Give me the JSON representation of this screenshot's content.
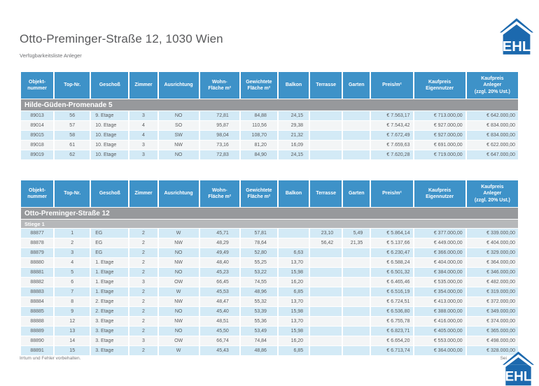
{
  "page": {
    "title": "Otto-Preminger-Straße 12, 1030 Wien",
    "subtitle": "Verfügbarkeitsliste Anleger",
    "footer_note": "Irrtum und Fehler vorbehalten.",
    "page_label": "Sei"
  },
  "logo": {
    "text": "EHL",
    "color": "#1c69ae"
  },
  "colors": {
    "header_blue": "#3e92c8",
    "section_gray": "#97999c",
    "subsection_gray": "#b6b8ba",
    "row_blue": "#d3eaf6",
    "row_white": "#f3f5f6",
    "text_gray": "#58595b",
    "logo_blue": "#1c69ae"
  },
  "columns": [
    "Objekt-\nnummer",
    "Top-Nr.",
    "Geschoß",
    "Zimmer",
    "Ausrichtung",
    "Wohn-\nFläche m²",
    "Gewichtete\nFläche m²",
    "Balkon",
    "Terrasse",
    "Garten",
    "Preis/m²",
    "Kaufpreis\nEigennutzer",
    "Kaufpreis\nAnleger\n(zzgl. 20% Ust.)"
  ],
  "tables": [
    {
      "section": "Hilde-Güden-Promenade 5",
      "subsection": null,
      "rows": [
        [
          "89013",
          "56",
          "9. Etage",
          "3",
          "NO",
          "72,81",
          "84,88",
          "24,15",
          "",
          "",
          "€ 7.563,17",
          "€ 713.000,00",
          "€ 642.000,00"
        ],
        [
          "89014",
          "57",
          "10. Etage",
          "4",
          "SO",
          "95,87",
          "110,56",
          "29,38",
          "",
          "",
          "€ 7.543,42",
          "€ 927.000,00",
          "€ 834.000,00"
        ],
        [
          "89015",
          "58",
          "10. Etage",
          "4",
          "SW",
          "98,04",
          "108,70",
          "21,32",
          "",
          "",
          "€ 7.672,49",
          "€ 927.000,00",
          "€ 834.000,00"
        ],
        [
          "89018",
          "61",
          "10. Etage",
          "3",
          "NW",
          "73,16",
          "81,20",
          "16,09",
          "",
          "",
          "€ 7.659,63",
          "€ 691.000,00",
          "€ 622.000,00"
        ],
        [
          "89019",
          "62",
          "10. Etage",
          "3",
          "NO",
          "72,83",
          "84,90",
          "24,15",
          "",
          "",
          "€ 7.620,28",
          "€ 719.000,00",
          "€ 647.000,00"
        ]
      ]
    },
    {
      "section": "Otto-Preminger-Straße 12",
      "subsection": "Stiege 1",
      "rows": [
        [
          "88877",
          "1",
          "EG",
          "2",
          "W",
          "45,71",
          "57,81",
          "",
          "23,10",
          "5,49",
          "€ 5.864,14",
          "€ 377.000,00",
          "€ 339.000,00"
        ],
        [
          "88878",
          "2",
          "EG",
          "2",
          "NW",
          "48,29",
          "78,64",
          "",
          "56,42",
          "21,35",
          "€ 5.137,66",
          "€ 449.000,00",
          "€ 404.000,00"
        ],
        [
          "88879",
          "3",
          "EG",
          "2",
          "NO",
          "49,49",
          "52,80",
          "6,63",
          "",
          "",
          "€ 6.230,47",
          "€ 366.000,00",
          "€ 329.000,00"
        ],
        [
          "88880",
          "4",
          "1. Etage",
          "2",
          "NW",
          "48,40",
          "55,25",
          "13,70",
          "",
          "",
          "€ 6.588,24",
          "€ 404.000,00",
          "€ 364.000,00"
        ],
        [
          "88881",
          "5",
          "1. Etage",
          "2",
          "NO",
          "45,23",
          "53,22",
          "15,98",
          "",
          "",
          "€ 6.501,32",
          "€ 384.000,00",
          "€ 346.000,00"
        ],
        [
          "88882",
          "6",
          "1. Etage",
          "3",
          "OW",
          "66,45",
          "74,55",
          "16,20",
          "",
          "",
          "€ 6.465,46",
          "€ 535.000,00",
          "€ 482.000,00"
        ],
        [
          "88883",
          "7",
          "1. Etage",
          "2",
          "W",
          "45,53",
          "48,96",
          "6,85",
          "",
          "",
          "€ 6.516,19",
          "€ 354.000,00",
          "€ 319.000,00"
        ],
        [
          "88884",
          "8",
          "2. Etage",
          "2",
          "NW",
          "48,47",
          "55,32",
          "13,70",
          "",
          "",
          "€ 6.724,51",
          "€ 413.000,00",
          "€ 372.000,00"
        ],
        [
          "88885",
          "9",
          "2. Etage",
          "2",
          "NO",
          "45,40",
          "53,39",
          "15,98",
          "",
          "",
          "€ 6.536,80",
          "€ 388.000,00",
          "€ 349.000,00"
        ],
        [
          "88888",
          "12",
          "3. Etage",
          "2",
          "NW",
          "48,51",
          "55,36",
          "13,70",
          "",
          "",
          "€ 6.755,78",
          "€ 416.000,00",
          "€ 374.000,00"
        ],
        [
          "88889",
          "13",
          "3. Etage",
          "2",
          "NO",
          "45,50",
          "53,49",
          "15,98",
          "",
          "",
          "€ 6.823,71",
          "€ 405.000,00",
          "€ 365.000,00"
        ],
        [
          "88890",
          "14",
          "3. Etage",
          "3",
          "OW",
          "66,74",
          "74,84",
          "16,20",
          "",
          "",
          "€ 6.654,20",
          "€ 553.000,00",
          "€ 498.000,00"
        ],
        [
          "88891",
          "15",
          "3. Etage",
          "2",
          "W",
          "45,43",
          "48,86",
          "6,85",
          "",
          "",
          "€ 6.713,74",
          "€ 364.000,00",
          "€ 328.000,00"
        ]
      ]
    }
  ]
}
